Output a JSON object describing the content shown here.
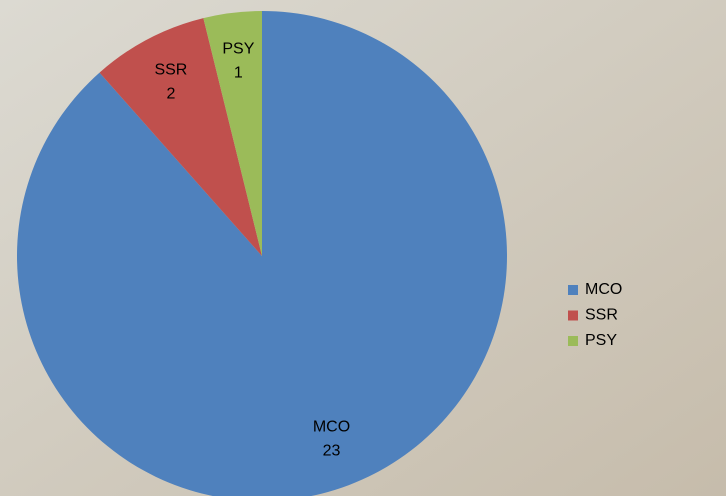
{
  "chart_data": {
    "type": "pie",
    "categories": [
      "MCO",
      "SSR",
      "PSY"
    ],
    "values": [
      23,
      2,
      1
    ],
    "colors": [
      "#4f81bd",
      "#c0504d",
      "#9bbb59"
    ],
    "legend": "right"
  }
}
